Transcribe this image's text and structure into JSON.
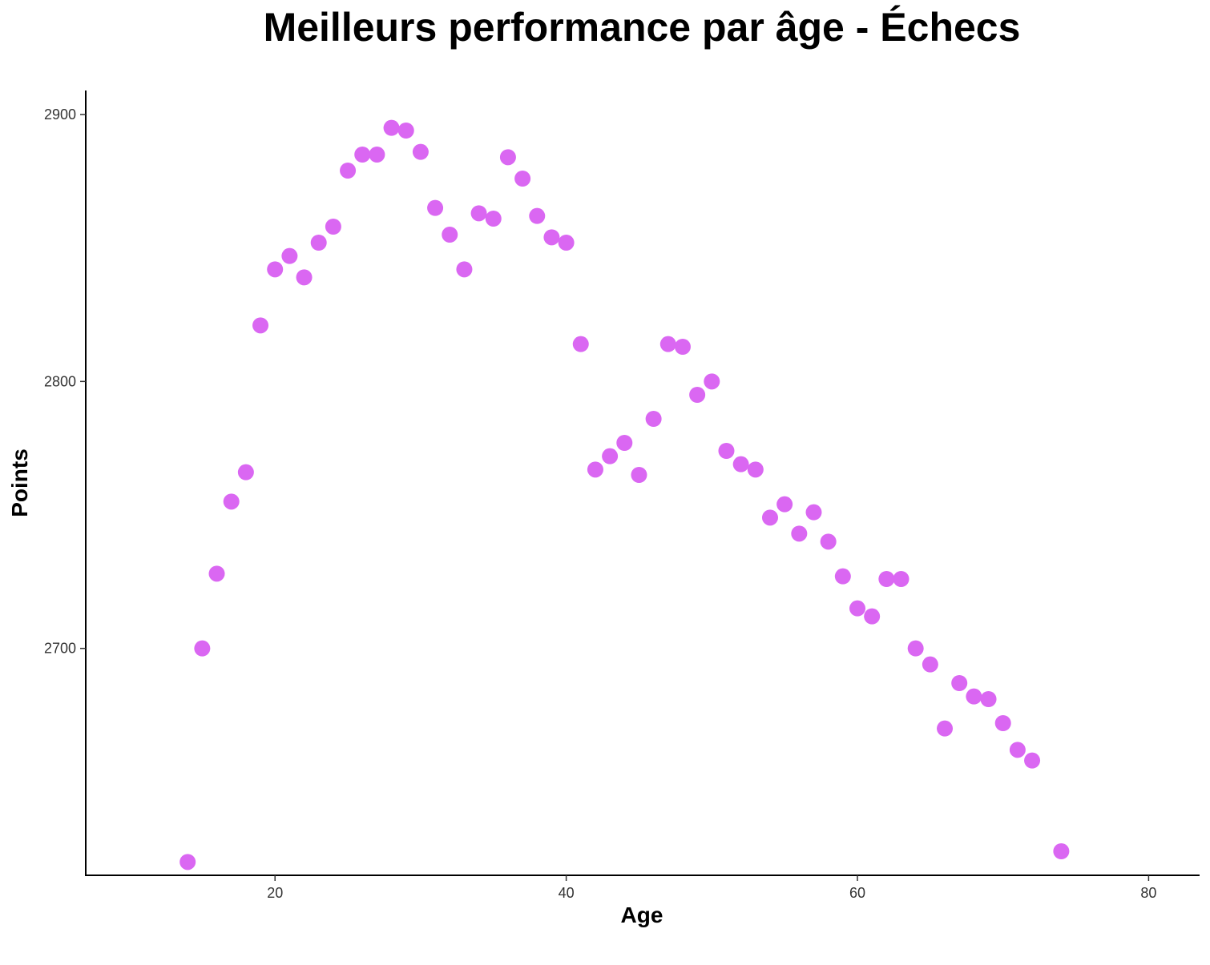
{
  "chart_data": {
    "type": "scatter",
    "title": "Meilleurs performance par âge - Échecs",
    "xlabel": "Age",
    "ylabel": "Points",
    "xlim": [
      7,
      83.5
    ],
    "ylim": [
      2615,
      2909
    ],
    "xticks": [
      20,
      40,
      60,
      80
    ],
    "yticks": [
      2700,
      2800,
      2900
    ],
    "grid": false,
    "legend": "none",
    "point_color": "#DA67F2",
    "series": [
      {
        "x": [
          14,
          15,
          16,
          17,
          18,
          19,
          20,
          21,
          22,
          23,
          24,
          25,
          26,
          27,
          28,
          29,
          30,
          31,
          32,
          33,
          34,
          35,
          36,
          37,
          38,
          39,
          40,
          41,
          42,
          43,
          44,
          45,
          46,
          47,
          48,
          49,
          50,
          51,
          52,
          53,
          54,
          55,
          56,
          57,
          58,
          59,
          60,
          61,
          62,
          63,
          64,
          65,
          66,
          67,
          68,
          69,
          70,
          71,
          72,
          74
        ],
        "y": [
          2620,
          2700,
          2728,
          2755,
          2766,
          2821,
          2842,
          2847,
          2839,
          2852,
          2858,
          2879,
          2885,
          2885,
          2895,
          2894,
          2886,
          2865,
          2855,
          2842,
          2863,
          2861,
          2884,
          2876,
          2862,
          2854,
          2852,
          2814,
          2767,
          2772,
          2777,
          2765,
          2786,
          2814,
          2813,
          2795,
          2800,
          2774,
          2769,
          2767,
          2749,
          2754,
          2743,
          2751,
          2740,
          2727,
          2715,
          2712,
          2726,
          2726,
          2700,
          2694,
          2670,
          2687,
          2682,
          2681,
          2672,
          2662,
          2658,
          2624
        ]
      }
    ]
  }
}
